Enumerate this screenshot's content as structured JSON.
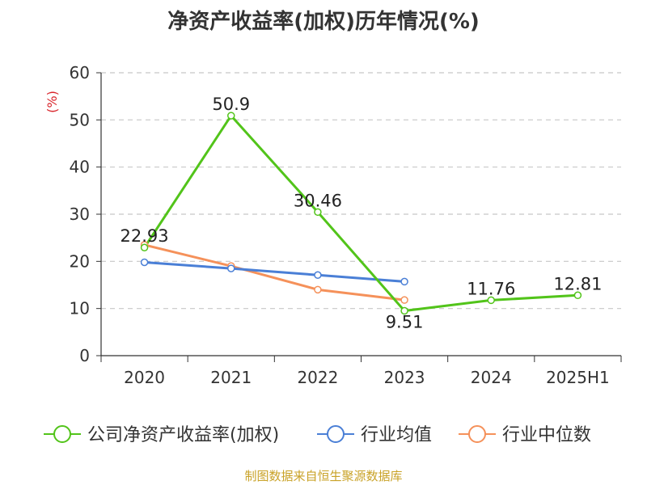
{
  "chart_data": {
    "type": "line",
    "title": "净资产收益率(加权)历年情况(%)",
    "ylabel": "(%)",
    "xlabel": "",
    "categories": [
      "2020",
      "2021",
      "2022",
      "2023",
      "2024",
      "2025H1"
    ],
    "ylim": [
      0,
      60
    ],
    "yticks": [
      0,
      10,
      20,
      30,
      40,
      50,
      60
    ],
    "grid": true,
    "legend_position": "bottom",
    "series": [
      {
        "name": "公司净资产收益率(加权)",
        "color": "#52c41a",
        "values": [
          22.93,
          50.9,
          30.46,
          9.51,
          11.76,
          12.81
        ],
        "labels": [
          "22.93",
          "50.9",
          "30.46",
          "9.51",
          "11.76",
          "12.81"
        ]
      },
      {
        "name": "行业均值",
        "color": "#4a7fd6",
        "values": [
          19.8,
          18.5,
          17.1,
          15.7,
          null,
          null
        ]
      },
      {
        "name": "行业中位数",
        "color": "#f5915a",
        "values": [
          23.5,
          19.0,
          14.0,
          11.8,
          null,
          null
        ]
      }
    ]
  },
  "source": "制图数据来自恒生聚源数据库"
}
